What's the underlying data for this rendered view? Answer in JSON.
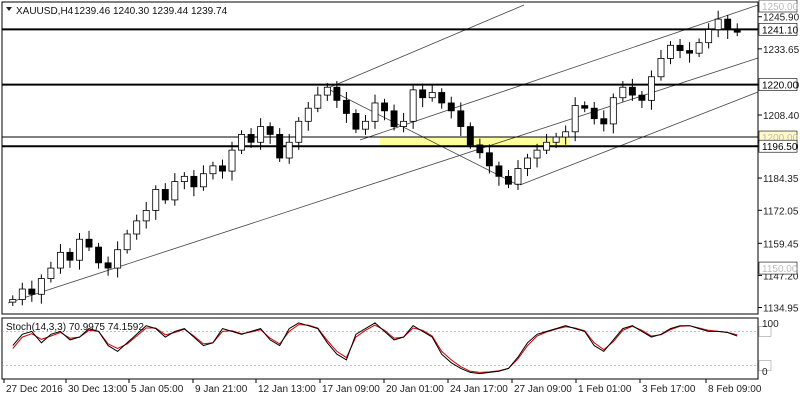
{
  "header": {
    "symbol": "XAUUSD,H4",
    "open": "1239.46",
    "high": "1240.30",
    "low": "1239.44",
    "close": "1239.74"
  },
  "indicator": {
    "label": "Stoch(14,3,3) 70.9975 74.1592",
    "max_label": "100",
    "min_label": "0",
    "level_high": 80,
    "level_low": 20
  },
  "levels": {
    "l1": "1241.10",
    "l2": "1220.00",
    "l3": "1200.00",
    "l4": "1196.50",
    "top_faded": "1250.00",
    "low_faded": "1150.00"
  },
  "colors": {
    "bull": "#000000",
    "bear": "#000000",
    "zone": "#ffff99",
    "stoch_main": "#000000",
    "stoch_signal": "#d40000",
    "grid": "#c8c8c8"
  },
  "chart_data": {
    "type": "candlestick",
    "price_ticks": [
      "1245.90",
      "1233.65",
      "1220.00",
      "1208.40",
      "1196.50",
      "1184.35",
      "1172.05",
      "1159.45",
      "1147.20",
      "1134.95"
    ],
    "time_labels": [
      "27 Dec 2016",
      "30 Dec 13:00",
      "5 Jan 05:00",
      "9 Jan 21:00",
      "12 Jan 13:00",
      "17 Jan 09:00",
      "20 Jan 01:00",
      "24 Jan 17:00",
      "27 Jan 09:00",
      "1 Feb 01:00",
      "3 Feb 17:00",
      "8 Feb 09:00"
    ],
    "horizontal_lines": [
      1241.1,
      1220.0,
      1196.5
    ],
    "zone": [
      1196.5,
      1200.0
    ],
    "ylim": [
      1134.0,
      1250.0
    ],
    "close_path": [
      1138,
      1142,
      1140,
      1146,
      1150,
      1156,
      1153,
      1161,
      1158,
      1152,
      1150,
      1157,
      1163,
      1168,
      1172,
      1180,
      1176,
      1183,
      1185,
      1181,
      1186,
      1189,
      1187,
      1195,
      1201,
      1198,
      1204,
      1201,
      1192,
      1198,
      1206,
      1211,
      1216,
      1219,
      1214,
      1209,
      1203,
      1206,
      1213,
      1210,
      1204,
      1206,
      1218,
      1215,
      1217,
      1213,
      1210,
      1204,
      1197,
      1194,
      1189,
      1185,
      1182,
      1188,
      1192,
      1195,
      1198,
      1200,
      1202,
      1212,
      1211,
      1207,
      1205,
      1215,
      1219,
      1216,
      1214,
      1223,
      1230,
      1235,
      1233,
      1232,
      1236,
      1241,
      1245,
      1241,
      1240
    ],
    "stoch_k": [
      55,
      75,
      80,
      60,
      75,
      80,
      65,
      70,
      85,
      80,
      55,
      45,
      60,
      75,
      90,
      85,
      70,
      80,
      85,
      70,
      55,
      60,
      85,
      80,
      75,
      80,
      85,
      65,
      55,
      85,
      95,
      90,
      85,
      60,
      40,
      30,
      75,
      85,
      95,
      80,
      65,
      70,
      90,
      80,
      70,
      40,
      25,
      15,
      8,
      6,
      8,
      10,
      15,
      35,
      60,
      75,
      80,
      85,
      90,
      85,
      80,
      55,
      45,
      65,
      85,
      90,
      80,
      70,
      75,
      85,
      90,
      90,
      85,
      80,
      80,
      78,
      72
    ],
    "stoch_d": [
      50,
      70,
      76,
      66,
      72,
      78,
      68,
      70,
      82,
      80,
      58,
      50,
      58,
      72,
      86,
      86,
      74,
      78,
      84,
      72,
      58,
      60,
      80,
      81,
      76,
      79,
      83,
      68,
      58,
      80,
      92,
      91,
      86,
      64,
      45,
      34,
      70,
      82,
      91,
      82,
      68,
      70,
      86,
      82,
      72,
      45,
      30,
      18,
      10,
      8,
      9,
      11,
      15,
      32,
      55,
      72,
      79,
      84,
      88,
      86,
      81,
      60,
      48,
      62,
      82,
      89,
      82,
      72,
      74,
      83,
      89,
      90,
      86,
      82,
      80,
      78,
      74
    ]
  }
}
